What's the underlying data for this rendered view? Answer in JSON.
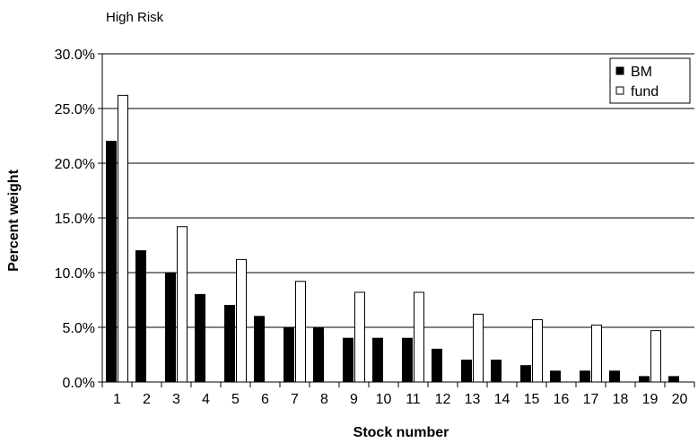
{
  "chart_data": {
    "type": "bar",
    "title": "High Risk",
    "xlabel": "Stock number",
    "ylabel": "Percent weight",
    "categories": [
      "1",
      "2",
      "3",
      "4",
      "5",
      "6",
      "7",
      "8",
      "9",
      "10",
      "11",
      "12",
      "13",
      "14",
      "15",
      "16",
      "17",
      "18",
      "19",
      "20"
    ],
    "series": [
      {
        "name": "BM",
        "color": "#000000",
        "values": [
          22.0,
          12.0,
          10.0,
          8.0,
          7.0,
          6.0,
          5.0,
          5.0,
          4.0,
          4.0,
          4.0,
          3.0,
          2.0,
          2.0,
          1.5,
          1.0,
          1.0,
          1.0,
          0.5,
          0.5
        ]
      },
      {
        "name": "fund",
        "color": "#ffffff",
        "values": [
          26.2,
          0,
          14.2,
          0,
          11.2,
          0,
          9.2,
          0,
          8.2,
          0,
          8.2,
          0,
          6.2,
          0,
          5.7,
          0,
          5.2,
          0,
          4.7,
          0
        ]
      }
    ],
    "ylim": [
      0,
      30
    ],
    "yticks": [
      "0.0%",
      "5.0%",
      "10.0%",
      "15.0%",
      "20.0%",
      "25.0%",
      "30.0%"
    ],
    "grid": true,
    "legend_position": "top-right"
  }
}
